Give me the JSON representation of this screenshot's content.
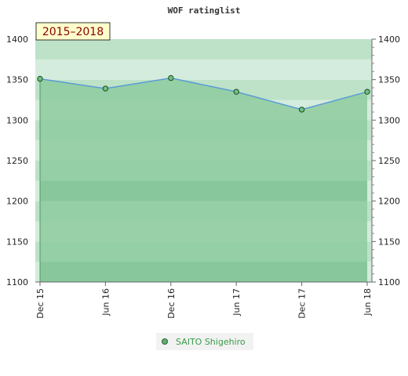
{
  "chart_data": {
    "type": "area",
    "title": "WOF ratinglist",
    "badge": "2015–2018",
    "categories": [
      "Dec 15",
      "Jun 16",
      "Dec 16",
      "Jun 17",
      "Dec 17",
      "Jun 18"
    ],
    "series": [
      {
        "name": "SAITO Shigehiro",
        "values": [
          1351,
          1339,
          1352,
          1335,
          1313,
          1335
        ]
      }
    ],
    "ylim": [
      1100,
      1400
    ],
    "yticks": [
      1100,
      1150,
      1200,
      1250,
      1300,
      1350,
      1400
    ],
    "grid": true,
    "legend_position": "bottom-center",
    "colors": {
      "band_pale": "#d4ecdd",
      "band_light": "#bde2c8",
      "area_fill": "#8ecb9f",
      "area_fill_dark": "#7bc293",
      "line": "#5b9bd5",
      "marker": "#3a8a4a",
      "badge_bg": "#ffffcc"
    }
  }
}
